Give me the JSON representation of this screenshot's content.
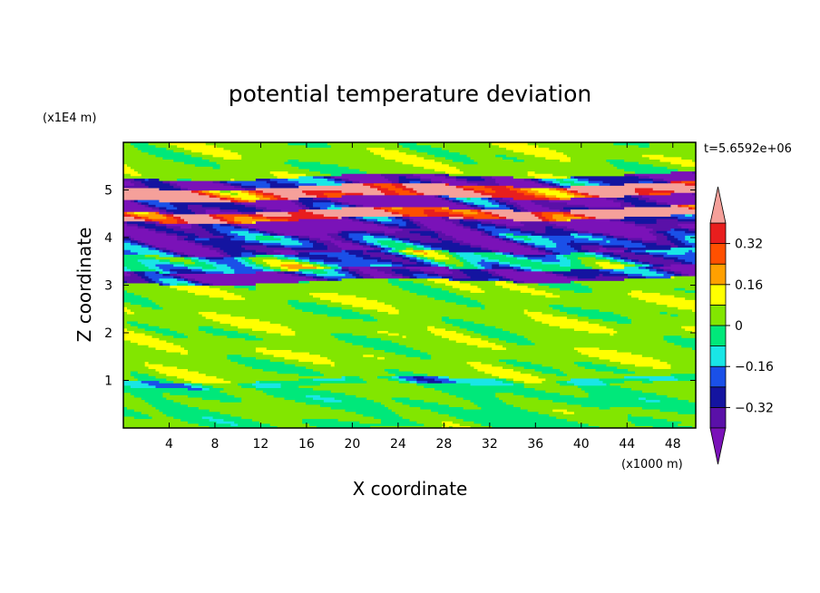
{
  "chart_data": {
    "type": "heatmap",
    "title": "potential temperature deviation",
    "xlabel": "X coordinate",
    "ylabel": "Z coordinate",
    "x_unit": "(x1000 m)",
    "y_unit": "(x1E4 m)",
    "time_label": "t=5.6592e+06",
    "xlim": [
      0,
      50
    ],
    "ylim": [
      0,
      6
    ],
    "x_ticks": [
      4,
      8,
      12,
      16,
      20,
      24,
      28,
      32,
      36,
      40,
      44,
      48
    ],
    "y_ticks": [
      1,
      2,
      3,
      4,
      5
    ],
    "colorbar": {
      "levels": [
        -0.4,
        -0.32,
        -0.24,
        -0.16,
        -0.08,
        0,
        0.08,
        0.16,
        0.24,
        0.32,
        0.4
      ],
      "labeled_levels": [
        0.32,
        0.16,
        0,
        -0.16,
        -0.32
      ],
      "tick_labels": [
        "0.32",
        "0.16",
        "0",
        "−0.16",
        "−0.32"
      ],
      "colors": [
        "#7a12b8",
        "#5a10a8",
        "#1414a0",
        "#1a50e8",
        "#19e6e6",
        "#00e87a",
        "#82e600",
        "#ffff00",
        "#ffa000",
        "#ff5000",
        "#e81e1e",
        "#f5a09a"
      ],
      "extend": "both"
    },
    "bands": [
      {
        "z_from": 0.0,
        "z_to": 0.92,
        "dominant": 0.0,
        "variation": "weak"
      },
      {
        "z_from": 0.92,
        "z_to": 1.05,
        "dominant": -0.08,
        "variation": "moderate"
      },
      {
        "z_from": 1.05,
        "z_to": 3.1,
        "dominant": 0.04,
        "variation": "weak"
      },
      {
        "z_from": 3.1,
        "z_to": 3.35,
        "dominant": -0.36,
        "variation": "strong"
      },
      {
        "z_from": 3.35,
        "z_to": 3.7,
        "dominant": -0.12,
        "variation": "strong"
      },
      {
        "z_from": 3.7,
        "z_to": 4.1,
        "dominant": -0.3,
        "variation": "strong"
      },
      {
        "z_from": 4.1,
        "z_to": 4.4,
        "dominant": -0.4,
        "variation": "strong"
      },
      {
        "z_from": 4.4,
        "z_to": 4.6,
        "dominant": 0.4,
        "variation": "strong"
      },
      {
        "z_from": 4.6,
        "z_to": 4.85,
        "dominant": -0.4,
        "variation": "strong"
      },
      {
        "z_from": 4.85,
        "z_to": 5.1,
        "dominant": 0.4,
        "variation": "strong"
      },
      {
        "z_from": 5.1,
        "z_to": 5.3,
        "dominant": -0.34,
        "variation": "strong"
      },
      {
        "z_from": 5.3,
        "z_to": 6.0,
        "dominant": 0.04,
        "variation": "weak"
      }
    ]
  }
}
